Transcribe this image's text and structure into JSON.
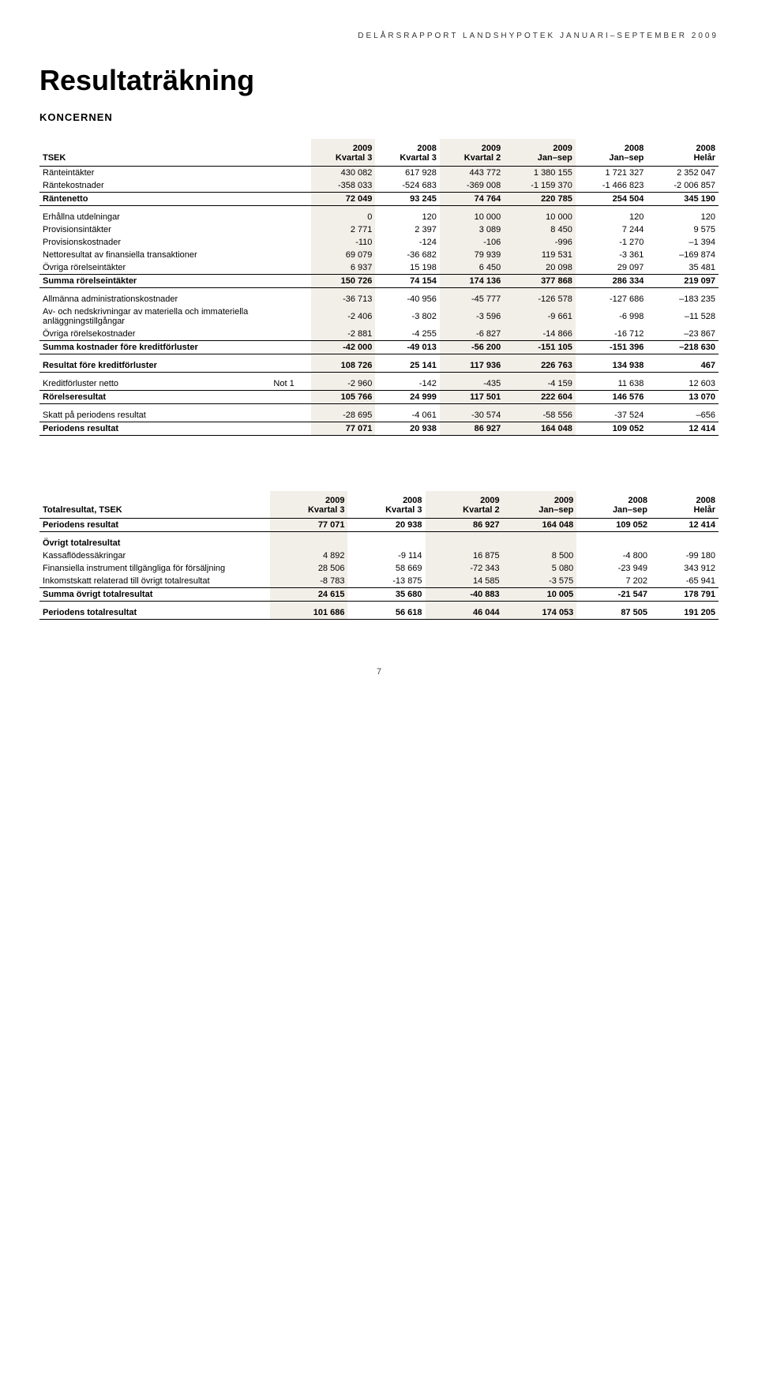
{
  "header": "DELÅRSRAPPORT LANDSHYPOTEK JANUARI–SEPTEMBER 2009",
  "title": "Resultaträkning",
  "subtitle": "KONCERNEN",
  "page_number": "7",
  "table1": {
    "head_label": "TSEK",
    "cols": [
      {
        "l1": "2009",
        "l2": "Kvartal 3",
        "hl": true
      },
      {
        "l1": "2008",
        "l2": "Kvartal 3",
        "hl": false
      },
      {
        "l1": "2009",
        "l2": "Kvartal 2",
        "hl": true
      },
      {
        "l1": "2009",
        "l2": "Jan–sep",
        "hl": true
      },
      {
        "l1": "2008",
        "l2": "Jan–sep",
        "hl": false
      },
      {
        "l1": "2008",
        "l2": "Helår",
        "hl": false
      }
    ],
    "sections": [
      [
        {
          "label": "Ränteintäkter",
          "v": [
            "430 082",
            "617 928",
            "443 772",
            "1 380 155",
            "1 721 327",
            "2 352 047"
          ]
        },
        {
          "label": "Räntekostnader",
          "v": [
            "-358 033",
            "-524 683",
            "-369 008",
            "-1 159 370",
            "-1 466 823",
            "-2 006 857"
          ]
        },
        {
          "label": "Räntenetto",
          "v": [
            "72 049",
            "93 245",
            "74 764",
            "220 785",
            "254 504",
            "345 190"
          ],
          "bold": true,
          "rule_top": true,
          "rule_bottom": true
        }
      ],
      [
        {
          "label": "Erhållna utdelningar",
          "v": [
            "0",
            "120",
            "10 000",
            "10 000",
            "120",
            "120"
          ],
          "spacer_before": true
        },
        {
          "label": "Provisionsintäkter",
          "v": [
            "2 771",
            "2 397",
            "3 089",
            "8 450",
            "7 244",
            "9 575"
          ]
        },
        {
          "label": "Provisionskostnader",
          "v": [
            "-110",
            "-124",
            "-106",
            "-996",
            "-1 270",
            "–1 394"
          ]
        },
        {
          "label": "Nettoresultat av finansiella transaktioner",
          "v": [
            "69 079",
            "-36 682",
            "79 939",
            "119 531",
            "-3 361",
            "–169 874"
          ]
        },
        {
          "label": "Övriga rörelseintäkter",
          "v": [
            "6 937",
            "15 198",
            "6 450",
            "20 098",
            "29 097",
            "35 481"
          ]
        },
        {
          "label": "Summa rörelseintäkter",
          "v": [
            "150 726",
            "74 154",
            "174 136",
            "377 868",
            "286 334",
            "219 097"
          ],
          "bold": true,
          "rule_top": true,
          "rule_bottom": true
        }
      ],
      [
        {
          "label": "Allmänna administrationskostnader",
          "v": [
            "-36 713",
            "-40 956",
            "-45 777",
            "-126 578",
            "-127 686",
            "–183 235"
          ],
          "spacer_before": true
        },
        {
          "label": "Av- och nedskrivningar av materiella och immateriella anläggningstillgångar",
          "v": [
            "-2 406",
            "-3 802",
            "-3 596",
            "-9 661",
            "-6 998",
            "–11 528"
          ]
        },
        {
          "label": "Övriga rörelsekostnader",
          "v": [
            "-2 881",
            "-4 255",
            "-6 827",
            "-14 866",
            "-16 712",
            "–23 867"
          ]
        },
        {
          "label": "Summa kostnader före kreditförluster",
          "v": [
            "-42 000",
            "-49 013",
            "-56 200",
            "-151 105",
            "-151 396",
            "–218 630"
          ],
          "bold": true,
          "rule_top": true,
          "rule_bottom": true
        }
      ],
      [
        {
          "label": "Resultat före kreditförluster",
          "v": [
            "108 726",
            "25 141",
            "117 936",
            "226 763",
            "134 938",
            "467"
          ],
          "bold": true,
          "rule_bottom": true,
          "spacer_before": true
        }
      ],
      [
        {
          "label": "Kreditförluster netto",
          "note": "Not 1",
          "v": [
            "-2 960",
            "-142",
            "-435",
            "-4 159",
            "11 638",
            "12 603"
          ],
          "spacer_before": true
        },
        {
          "label": "Rörelseresultat",
          "v": [
            "105 766",
            "24 999",
            "117 501",
            "222 604",
            "146 576",
            "13 070"
          ],
          "bold": true,
          "rule_top": true,
          "rule_bottom": true
        }
      ],
      [
        {
          "label": "Skatt på periodens resultat",
          "v": [
            "-28 695",
            "-4 061",
            "-30 574",
            "-58 556",
            "-37 524",
            "–656"
          ],
          "spacer_before": true
        },
        {
          "label": "Periodens resultat",
          "v": [
            "77 071",
            "20 938",
            "86 927",
            "164 048",
            "109 052",
            "12 414"
          ],
          "bold": true,
          "rule_top": true,
          "rule_bottom": true
        }
      ]
    ]
  },
  "table2": {
    "head_label": "Totalresultat, TSEK",
    "cols": [
      {
        "l1": "2009",
        "l2": "Kvartal 3",
        "hl": true
      },
      {
        "l1": "2008",
        "l2": "Kvartal 3",
        "hl": false
      },
      {
        "l1": "2009",
        "l2": "Kvartal 2",
        "hl": true
      },
      {
        "l1": "2009",
        "l2": "Jan–sep",
        "hl": true
      },
      {
        "l1": "2008",
        "l2": "Jan–sep",
        "hl": false
      },
      {
        "l1": "2008",
        "l2": "Helår",
        "hl": false
      }
    ],
    "sections": [
      [
        {
          "label": "Periodens resultat",
          "v": [
            "77 071",
            "20 938",
            "86 927",
            "164 048",
            "109 052",
            "12 414"
          ],
          "bold": true,
          "rule_bottom": true
        }
      ],
      [
        {
          "label": "Övrigt totalresultat",
          "v": [
            "",
            "",
            "",
            "",
            "",
            ""
          ],
          "bold": true,
          "spacer_before": true
        },
        {
          "label": "Kassaflödessäkringar",
          "v": [
            "4 892",
            "-9 114",
            "16 875",
            "8 500",
            "-4 800",
            "-99 180"
          ]
        },
        {
          "label": "Finansiella instrument tillgängliga för försäljning",
          "v": [
            "28 506",
            "58 669",
            "-72 343",
            "5 080",
            "-23 949",
            "343 912"
          ]
        },
        {
          "label": "Inkomstskatt relaterad till övrigt totalresultat",
          "v": [
            "-8 783",
            "-13 875",
            "14 585",
            "-3 575",
            "7 202",
            "-65 941"
          ]
        },
        {
          "label": "Summa övrigt totalresultat",
          "v": [
            "24 615",
            "35 680",
            "-40 883",
            "10 005",
            "-21 547",
            "178 791"
          ],
          "bold": true,
          "rule_top": true,
          "rule_bottom": true
        }
      ],
      [
        {
          "label": "Periodens totalresultat",
          "v": [
            "101 686",
            "56 618",
            "46 044",
            "174 053",
            "87 505",
            "191 205"
          ],
          "bold": true,
          "rule_bottom": true,
          "spacer_before": true
        }
      ]
    ]
  }
}
